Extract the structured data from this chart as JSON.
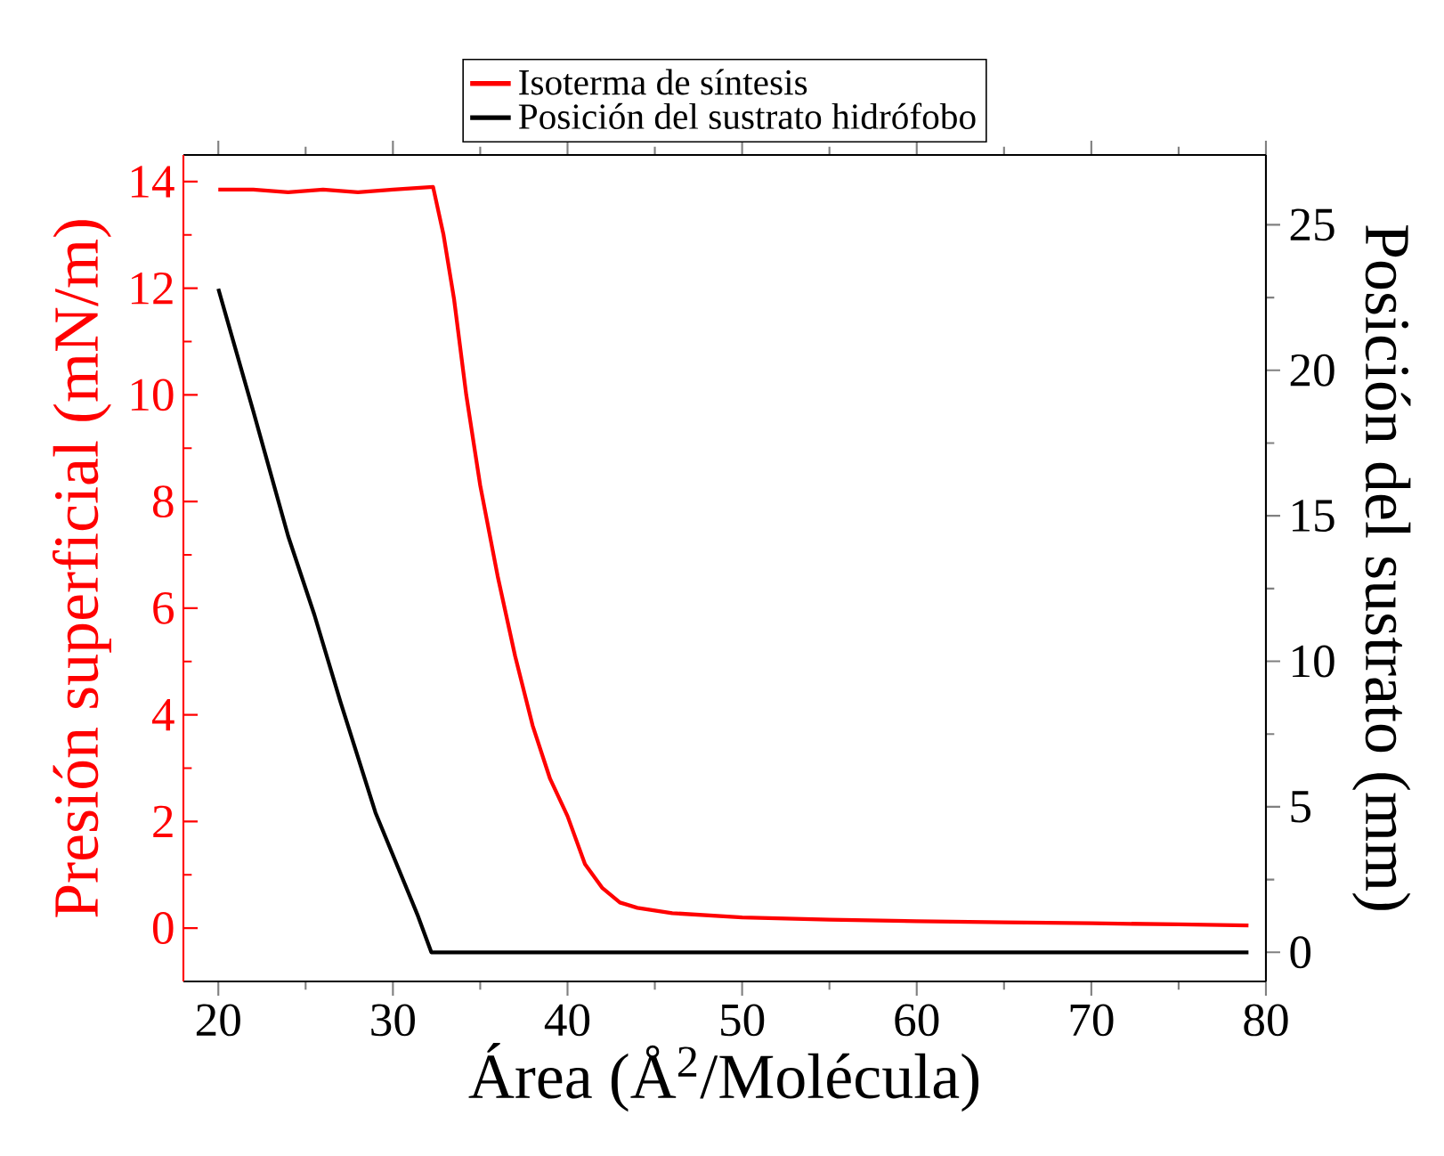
{
  "chart_data": {
    "type": "line",
    "xlabel": "Área (Å$^{2}$/Molécula)",
    "ylabel": "Presión superficial (mN/m)",
    "y2label": "Posición del sustrato (mm)",
    "xlim": [
      18,
      80
    ],
    "xticks": [
      20,
      30,
      40,
      50,
      60,
      70,
      80
    ],
    "ylim": [
      -1,
      14.5
    ],
    "yticks": [
      0,
      2,
      4,
      6,
      8,
      10,
      12,
      14
    ],
    "y2lim": [
      -1,
      27.4
    ],
    "y2ticks": [
      0,
      5,
      10,
      15,
      20,
      25
    ],
    "legend": "top",
    "series": [
      {
        "name": "Isoterma de síntesis",
        "color": "#ff0000",
        "x": [
          20,
          22,
          24,
          26,
          28,
          30,
          32.3,
          32.9,
          33.5,
          34.2,
          35,
          36,
          37,
          38,
          39,
          40,
          41,
          42,
          43,
          44,
          46,
          50,
          55,
          60,
          65,
          70,
          75,
          79
        ],
        "values": [
          13.85,
          13.85,
          13.8,
          13.85,
          13.8,
          13.85,
          13.9,
          13.0,
          11.8,
          10.0,
          8.3,
          6.6,
          5.1,
          3.8,
          2.8,
          2.1,
          1.2,
          0.75,
          0.48,
          0.38,
          0.28,
          0.2,
          0.16,
          0.13,
          0.11,
          0.09,
          0.07,
          0.05
        ]
      },
      {
        "name": "Posición del sustrato hidrófobo",
        "color": "#000000",
        "axis": "y2",
        "x": [
          20,
          22,
          24,
          25.5,
          27,
          29,
          31.4,
          32.2,
          40,
          50,
          60,
          70,
          79
        ],
        "values": [
          22.8,
          18.6,
          14.3,
          11.6,
          8.6,
          4.8,
          1.3,
          0,
          0,
          0,
          0,
          0,
          0
        ]
      }
    ]
  }
}
